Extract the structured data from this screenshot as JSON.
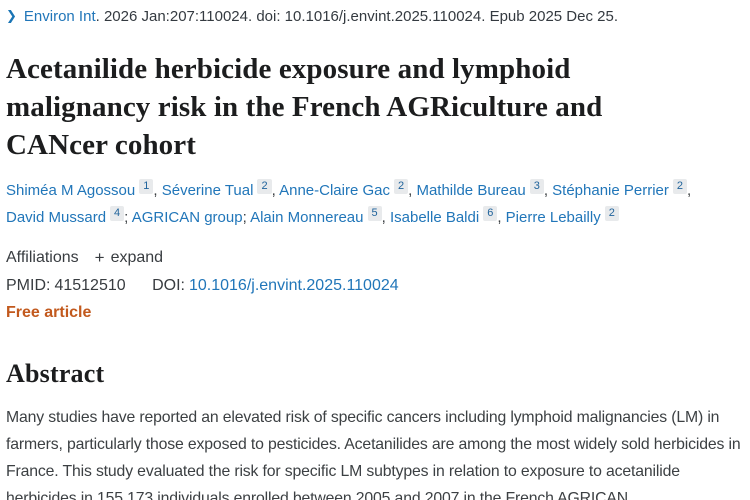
{
  "citation": {
    "chevron_icon": "❯",
    "journal": "Environ Int",
    "rest": ". 2026 Jan:207:110024. doi: 10.1016/j.envint.2025.110024. Epub 2025 Dec 25."
  },
  "title": "Acetanilide herbicide exposure and lymphoid malignancy risk in the French AGRiculture and CANcer cohort",
  "authors": [
    {
      "name": "Shiméa M Agossou",
      "sup": "1",
      "sep": ","
    },
    {
      "name": "Séverine Tual",
      "sup": "2",
      "sep": ","
    },
    {
      "name": "Anne-Claire Gac",
      "sup": "2",
      "sep": ","
    },
    {
      "name": "Mathilde Bureau",
      "sup": "3",
      "sep": ","
    },
    {
      "name": "Stéphanie Perrier",
      "sup": "2",
      "sep": ","
    },
    {
      "name": "David Mussard",
      "sup": "4",
      "sep": ";"
    },
    {
      "name": "AGRICAN group",
      "sup": "",
      "sep": ";"
    },
    {
      "name": "Alain Monnereau",
      "sup": "5",
      "sep": ","
    },
    {
      "name": "Isabelle Baldi",
      "sup": "6",
      "sep": ","
    },
    {
      "name": "Pierre Lebailly",
      "sup": "2",
      "sep": ""
    }
  ],
  "affiliations": {
    "label": "Affiliations",
    "plus_icon": "+",
    "expand_label": "expand"
  },
  "ids": {
    "pmid_label": "PMID:",
    "pmid": "41512510",
    "doi_label": "DOI:",
    "doi": "10.1016/j.envint.2025.110024"
  },
  "free_article_label": "Free article",
  "abstract": {
    "heading": "Abstract",
    "text": "Many studies have reported an elevated risk of specific cancers including lymphoid malignancies (LM) in farmers, particularly those exposed to pesticides. Acetanilides are among the most widely sold herbicides in France. This study evaluated the risk for specific LM subtypes in relation to exposure to acetanilide herbicides in 155,173 individuals enrolled between 2005 and 2007 in the French AGRICAN"
  },
  "colors": {
    "link_blue": "#2176b9",
    "free_article_orange": "#c2591d",
    "title_dark": "#1c1d1e",
    "superscript_bg": "#e8eaec"
  }
}
